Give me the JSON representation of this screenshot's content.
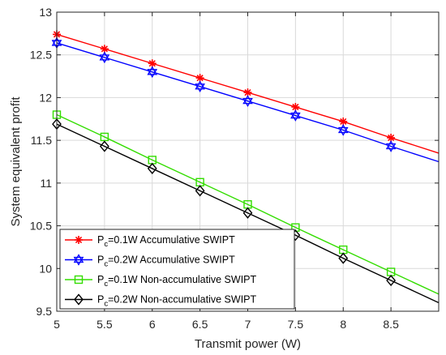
{
  "chart_data": {
    "type": "line",
    "title": "",
    "xlabel": "Transmit power (W)",
    "ylabel": "System equivalent profit",
    "xlim": [
      5,
      9
    ],
    "ylim": [
      9.5,
      13
    ],
    "x_ticks": [
      "5",
      "5.5",
      "6",
      "6.5",
      "7",
      "7.5",
      "8",
      "8.5"
    ],
    "y_ticks": [
      "9.5",
      "10",
      "10.5",
      "11",
      "11.5",
      "12",
      "12.5",
      "13"
    ],
    "grid": true,
    "legend_position": "bottom-left",
    "x": [
      5,
      5.5,
      6,
      6.5,
      7,
      7.5,
      8,
      8.5,
      9
    ],
    "series": [
      {
        "name": "P_c=0.1W Accumulative SWIPT",
        "label_main": "P",
        "label_sub": "c",
        "label_rest": "=0.1W Accumulative SWIPT",
        "color": "#ff0000",
        "marker": "asterisk",
        "values": [
          12.74,
          12.57,
          12.4,
          12.23,
          12.06,
          11.89,
          11.72,
          11.53,
          11.35
        ]
      },
      {
        "name": "P_c=0.2W Accumulative SWIPT",
        "label_main": "P",
        "label_sub": "c",
        "label_rest": "=0.2W Accumulative SWIPT",
        "color": "#0000ff",
        "marker": "hexagram",
        "values": [
          12.64,
          12.47,
          12.3,
          12.13,
          11.96,
          11.79,
          11.62,
          11.43,
          11.25
        ]
      },
      {
        "name": "P_c=0.1W Non-accumulative SWIPT",
        "label_main": "P",
        "label_sub": "c",
        "label_rest": "=0.1W Non-accumulative SWIPT",
        "color": "#33dd00",
        "marker": "square",
        "values": [
          11.8,
          11.54,
          11.27,
          11.01,
          10.75,
          10.48,
          10.22,
          9.96,
          9.7
        ]
      },
      {
        "name": "P_c=0.2W Non-accumulative SWIPT",
        "label_main": "P",
        "label_sub": "c",
        "label_rest": "=0.2W Non-accumulative SWIPT",
        "color": "#000000",
        "marker": "diamond",
        "values": [
          11.69,
          11.43,
          11.17,
          10.91,
          10.65,
          10.39,
          10.12,
          9.86,
          9.6
        ]
      }
    ]
  }
}
